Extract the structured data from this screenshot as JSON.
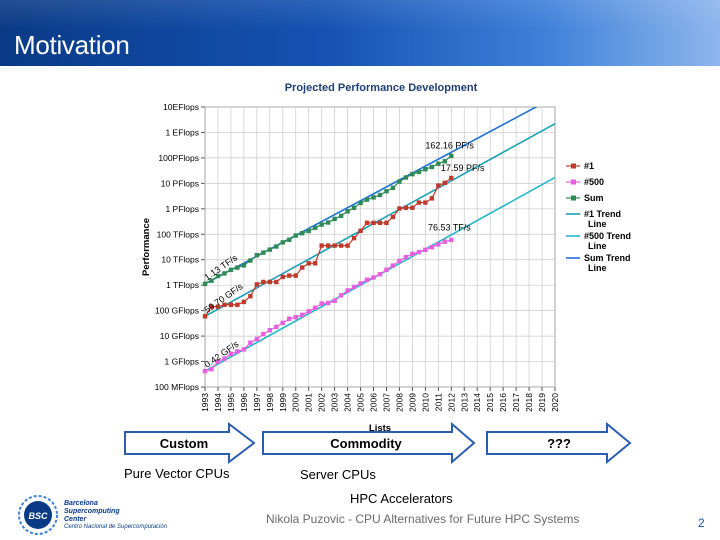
{
  "slide": {
    "title": "Motivation",
    "footer": "Nikola Puzovic - CPU Alternatives for Future HPC Systems",
    "page_number": "2"
  },
  "logo": {
    "mark": "BSC",
    "name_lines": [
      "Barcelona",
      "Supercomputing",
      "Center"
    ],
    "subtitle": "Centro Nacional de Supercomputación"
  },
  "arrows": [
    {
      "label": "Custom"
    },
    {
      "label": "Commodity"
    },
    {
      "label": "???"
    }
  ],
  "captions": {
    "custom": "Pure Vector CPUs",
    "commodity": "Server CPUs",
    "future": "HPC Accelerators"
  },
  "colors": {
    "header_dark": "#0a3a86",
    "num1": "#c0392b",
    "num500": "#e85ee0",
    "sum": "#2e8b57",
    "trend1": "#1aa0b3",
    "trend500": "#22b8c8",
    "trend_sum": "#1e73d8",
    "arrow_stroke": "#2a5db0"
  },
  "chart_data": {
    "type": "line",
    "title": "Projected Performance Development",
    "xlabel": "Lists",
    "ylabel": "Performance",
    "y_scale": "log",
    "y_unit": "flops",
    "ylim": [
      100000000.0,
      1e+19
    ],
    "y_ticks": [
      {
        "value": 100000000.0,
        "label": "100 MFlops"
      },
      {
        "value": 1000000000.0,
        "label": "1 GFlops"
      },
      {
        "value": 10000000000.0,
        "label": "10 GFlops"
      },
      {
        "value": 100000000000.0,
        "label": "100 GFlops"
      },
      {
        "value": 1000000000000.0,
        "label": "1 TFlops"
      },
      {
        "value": 10000000000000.0,
        "label": "10 TFlops"
      },
      {
        "value": 100000000000000.0,
        "label": "100 TFlops"
      },
      {
        "value": 1000000000000000.0,
        "label": "1 PFlops"
      },
      {
        "value": 1e+16,
        "label": "10 PFlops"
      },
      {
        "value": 1e+17,
        "label": "100PFlops"
      },
      {
        "value": 1e+18,
        "label": "1 EFlops"
      },
      {
        "value": 1e+19,
        "label": "10EFlops"
      }
    ],
    "xlim": [
      1993,
      2020
    ],
    "x_ticks": [
      "1993",
      "1994",
      "1995",
      "1996",
      "1997",
      "1998",
      "1999",
      "2000",
      "2001",
      "2002",
      "2003",
      "2004",
      "2005",
      "2006",
      "2007",
      "2008",
      "2009",
      "2010",
      "2011",
      "2012",
      "2013",
      "2014",
      "2015",
      "2016",
      "2017",
      "2018",
      "2019",
      "2020"
    ],
    "grid": true,
    "legend_position": "right",
    "series": [
      {
        "name": "#1",
        "kind": "markers",
        "color": "#c0392b",
        "x": [
          1993.0,
          1993.5,
          1994.0,
          1994.5,
          1995.0,
          1995.5,
          1996.0,
          1996.5,
          1997.0,
          1997.5,
          1998.0,
          1998.5,
          1999.0,
          1999.5,
          2000.0,
          2000.5,
          2001.0,
          2001.5,
          2002.0,
          2002.5,
          2003.0,
          2003.5,
          2004.0,
          2004.5,
          2005.0,
          2005.5,
          2006.0,
          2006.5,
          2007.0,
          2007.5,
          2008.0,
          2008.5,
          2009.0,
          2009.5,
          2010.0,
          2010.5,
          2011.0,
          2011.5,
          2012.0
        ],
        "y": [
          59700000000.0,
          143000000000.0,
          143000000000.0,
          170000000000.0,
          170000000000.0,
          170000000000.0,
          220000000000.0,
          368000000000.0,
          1070000000000.0,
          1340000000000.0,
          1340000000000.0,
          1340000000000.0,
          2120000000000.0,
          2380000000000.0,
          2380000000000.0,
          4940000000000.0,
          7230000000000.0,
          7230000000000.0,
          35900000000000.0,
          35900000000000.0,
          35900000000000.0,
          35900000000000.0,
          35900000000000.0,
          70700000000000.0,
          137000000000000.0,
          281000000000000.0,
          281000000000000.0,
          281000000000000.0,
          281000000000000.0,
          478000000000000.0,
          1030000000000000.0,
          1100000000000000.0,
          1100000000000000.0,
          1760000000000000.0,
          1760000000000000.0,
          2570000000000000.0,
          8160000000000000.0,
          1.05e+16,
          1.63e+16
        ]
      },
      {
        "name": "#500",
        "kind": "markers",
        "color": "#e85ee0",
        "x": [
          1993.0,
          1993.5,
          1994.0,
          1994.5,
          1995.0,
          1995.5,
          1996.0,
          1996.5,
          1997.0,
          1997.5,
          1998.0,
          1998.5,
          1999.0,
          1999.5,
          2000.0,
          2000.5,
          2001.0,
          2001.5,
          2002.0,
          2002.5,
          2003.0,
          2003.5,
          2004.0,
          2004.5,
          2005.0,
          2005.5,
          2006.0,
          2006.5,
          2007.0,
          2007.5,
          2008.0,
          2008.5,
          2009.0,
          2009.5,
          2010.0,
          2010.5,
          2011.0,
          2011.5,
          2012.0
        ],
        "y": [
          420000000.0,
          500000000.0,
          1000000000.0,
          1300000000.0,
          2000000000.0,
          2500000000.0,
          3000000000.0,
          5500000000.0,
          7700000000.0,
          12000000000.0,
          17000000000.0,
          23000000000.0,
          33000000000.0,
          48000000000.0,
          55000000000.0,
          68000000000.0,
          94000000000.0,
          130000000000.0,
          190000000000.0,
          200000000000.0,
          245000000000.0,
          400000000000.0,
          620000000000.0,
          850000000000.0,
          1170000000000.0,
          1640000000000.0,
          2000000000000.0,
          2700000000000.0,
          4000000000000.0,
          5900000000000.0,
          9000000000000.0,
          12700000000000.0,
          17000000000000.0,
          20000000000000.0,
          24500000000000.0,
          31000000000000.0,
          40000000000000.0,
          51000000000000.0,
          60000000000000.0
        ]
      },
      {
        "name": "Sum",
        "kind": "markers",
        "color": "#2e8b57",
        "x": [
          1993.0,
          1993.5,
          1994.0,
          1994.5,
          1995.0,
          1995.5,
          1996.0,
          1996.5,
          1997.0,
          1997.5,
          1998.0,
          1998.5,
          1999.0,
          1999.5,
          2000.0,
          2000.5,
          2001.0,
          2001.5,
          2002.0,
          2002.5,
          2003.0,
          2003.5,
          2004.0,
          2004.5,
          2005.0,
          2005.5,
          2006.0,
          2006.5,
          2007.0,
          2007.5,
          2008.0,
          2008.5,
          2009.0,
          2009.5,
          2010.0,
          2010.5,
          2011.0,
          2011.5,
          2012.0
        ],
        "y": [
          1130000000000.0,
          1500000000000.0,
          2300000000000.0,
          2900000000000.0,
          4000000000000.0,
          4900000000000.0,
          6000000000000.0,
          9300000000000.0,
          15000000000000.0,
          19000000000000.0,
          25000000000000.0,
          33000000000000.0,
          48000000000000.0,
          61000000000000.0,
          89000000000000.0,
          110000000000000.0,
          135000000000000.0,
          180000000000000.0,
          240000000000000.0,
          290000000000000.0,
          400000000000000.0,
          530000000000000.0,
          800000000000000.0,
          1100000000000000.0,
          1700000000000000.0,
          2300000000000000.0,
          2800000000000000.0,
          3500000000000000.0,
          4900000000000000.0,
          6700000000000000.0,
          1.17e+16,
          1.7e+16,
          2.3e+16,
          2.8e+16,
          3.6e+16,
          4.4e+16,
          5.9e+16,
          7.4e+16,
          1.2e+17
        ]
      },
      {
        "name": "#1 Trend Line",
        "kind": "line",
        "color": "#1aa0b3",
        "x": [
          1993,
          2020
        ],
        "y": [
          59700000000.0,
          2.2e+18
        ]
      },
      {
        "name": "#500 Trend Line",
        "kind": "line",
        "color": "#22b8c8",
        "x": [
          1993,
          2020
        ],
        "y": [
          420000000.0,
          1.7e+16
        ]
      },
      {
        "name": "Sum Trend Line",
        "kind": "line",
        "color": "#1e73d8",
        "x": [
          1993,
          2020
        ],
        "y": [
          1130000000000.0,
          2.5e+19
        ]
      }
    ],
    "annotations": [
      {
        "text": "1.13 TF/s",
        "x": 1993.0,
        "y": 1130000000000.0,
        "rotation": -35
      },
      {
        "text": "59.70 GF/s",
        "x": 1993.0,
        "y": 59700000000.0,
        "rotation": -35
      },
      {
        "text": "0.42 GF/s",
        "x": 1993.0,
        "y": 420000000.0,
        "rotation": -35
      },
      {
        "text": "162.16 PF/s",
        "x": 2010.0,
        "y": 1.6e+17,
        "rotation": 0
      },
      {
        "text": "17.59 PF/s",
        "x": 2011.2,
        "y": 2.1e+16,
        "rotation": 0
      },
      {
        "text": "76.53 TF/s",
        "x": 2010.2,
        "y": 100000000000000.0,
        "rotation": 0
      }
    ]
  }
}
